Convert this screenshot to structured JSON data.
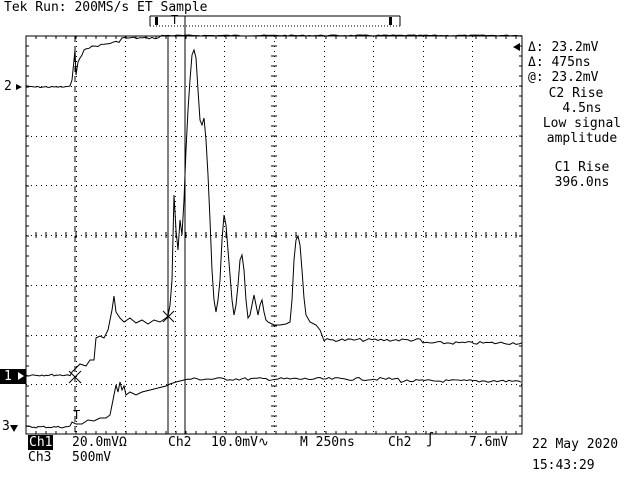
{
  "header": {
    "status": "Tek Run: 200MS/s ET Sample"
  },
  "trigger_position_marker": "T",
  "measurements": {
    "delta_v_1": "Δ: 23.2mV",
    "delta_t": "Δ: 475ns",
    "at_v": "@: 23.2mV",
    "c2_title": "C2 Rise",
    "c2_value": "4.5ns",
    "c2_note_1": "Low signal",
    "c2_note_2": "amplitude",
    "c1_title": "C1 Rise",
    "c1_value": "396.0ns"
  },
  "channel_markers": {
    "ch2": "2",
    "ch1": "1",
    "ch3": "3",
    "trigger_t": "T"
  },
  "bottom": {
    "ch1_label": "Ch1",
    "ch1_scale": "20.0mVΩ",
    "ch2_label": "Ch2",
    "ch2_scale": "10.0mV∿",
    "timebase": "M 250ns",
    "trigger_source": "Ch2",
    "trigger_level": "7.6mV",
    "ch3_label": "Ch3",
    "ch3_scale": "500mV",
    "date": "22 May 2020",
    "time": "15:43:29"
  },
  "colors": {
    "background": "#ffffff",
    "trace": "#000000",
    "grid": "#000000"
  }
}
